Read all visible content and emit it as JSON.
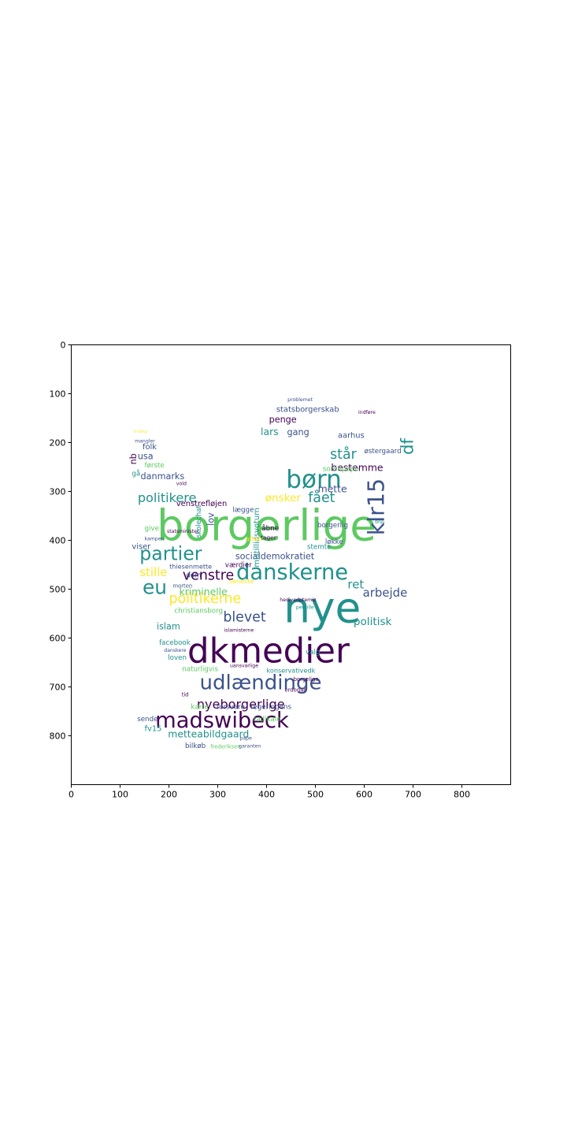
{
  "chart_data": {
    "type": "wordcloud",
    "xlim": [
      0,
      900
    ],
    "ylim": [
      900,
      0
    ],
    "x_ticks": [
      0,
      100,
      200,
      300,
      400,
      500,
      600,
      700,
      800
    ],
    "y_ticks": [
      0,
      100,
      200,
      300,
      400,
      500,
      600,
      700,
      800
    ],
    "grid": false,
    "palette": [
      "#440154",
      "#3b528b",
      "#21918c",
      "#5ec962",
      "#fde725"
    ],
    "words": [
      {
        "text": "borgerlige",
        "x": 175,
        "y": 400,
        "size": 88,
        "color": "#5ec962"
      },
      {
        "text": "dkmedier",
        "x": 238,
        "y": 650,
        "size": 70,
        "color": "#440154"
      },
      {
        "text": "nye",
        "x": 435,
        "y": 568,
        "size": 86,
        "color": "#21918c"
      },
      {
        "text": "danskerne",
        "x": 338,
        "y": 480,
        "size": 44,
        "color": "#21918c"
      },
      {
        "text": "udlændinge",
        "x": 263,
        "y": 705,
        "size": 42,
        "color": "#3b528b"
      },
      {
        "text": "madswibeck",
        "x": 172,
        "y": 783,
        "size": 44,
        "color": "#440154"
      },
      {
        "text": "partier",
        "x": 140,
        "y": 440,
        "size": 38,
        "color": "#21918c"
      },
      {
        "text": "børn",
        "x": 440,
        "y": 292,
        "size": 50,
        "color": "#21918c"
      },
      {
        "text": "klr15",
        "x": 640,
        "y": 390,
        "size": 46,
        "color": "#3b528b",
        "rotate": -90
      },
      {
        "text": "eu",
        "x": 146,
        "y": 510,
        "size": 40,
        "color": "#21918c"
      },
      {
        "text": "nyeborgerlige",
        "x": 257,
        "y": 744,
        "size": 26,
        "color": "#440154"
      },
      {
        "text": "blevet",
        "x": 311,
        "y": 566,
        "size": 28,
        "color": "#3b528b"
      },
      {
        "text": "politikerne",
        "x": 200,
        "y": 528,
        "size": 28,
        "color": "#fde725"
      },
      {
        "text": "venstre",
        "x": 228,
        "y": 481,
        "size": 28,
        "color": "#440154"
      },
      {
        "text": "politikere",
        "x": 136,
        "y": 322,
        "size": 26,
        "color": "#21918c"
      },
      {
        "text": "står",
        "x": 530,
        "y": 233,
        "size": 28,
        "color": "#21918c"
      },
      {
        "text": "fået",
        "x": 485,
        "y": 322,
        "size": 28,
        "color": "#21918c"
      },
      {
        "text": "df",
        "x": 700,
        "y": 225,
        "size": 34,
        "color": "#21918c",
        "rotate": -90
      },
      {
        "text": "arbejde",
        "x": 597,
        "y": 515,
        "size": 24,
        "color": "#3b528b"
      },
      {
        "text": "ret",
        "x": 566,
        "y": 498,
        "size": 24,
        "color": "#21918c"
      },
      {
        "text": "politisk",
        "x": 578,
        "y": 573,
        "size": 22,
        "color": "#21918c"
      },
      {
        "text": "stille",
        "x": 140,
        "y": 473,
        "size": 24,
        "color": "#fde725"
      },
      {
        "text": "metteabildgaard",
        "x": 198,
        "y": 803,
        "size": 20,
        "color": "#21918c"
      },
      {
        "text": "kriminelle",
        "x": 221,
        "y": 512,
        "size": 20,
        "color": "#5ec962"
      },
      {
        "text": "mette",
        "x": 505,
        "y": 302,
        "size": 20,
        "color": "#3b528b"
      },
      {
        "text": "bestemme",
        "x": 532,
        "y": 258,
        "size": 20,
        "color": "#440154"
      },
      {
        "text": "ønsker",
        "x": 397,
        "y": 320,
        "size": 22,
        "color": "#fde725"
      },
      {
        "text": "socialdemokratiet",
        "x": 336,
        "y": 439,
        "size": 18,
        "color": "#3b528b"
      },
      {
        "text": "mistillidsvotum",
        "x": 385,
        "y": 455,
        "size": 16,
        "color": "#21918c",
        "rotate": -90
      },
      {
        "text": "statsborgerskab",
        "x": 420,
        "y": 137,
        "size": 16,
        "color": "#3b528b"
      },
      {
        "text": "lars",
        "x": 388,
        "y": 185,
        "size": 20,
        "color": "#21918c"
      },
      {
        "text": "penge",
        "x": 405,
        "y": 159,
        "size": 18,
        "color": "#440154"
      },
      {
        "text": "gang",
        "x": 442,
        "y": 185,
        "size": 18,
        "color": "#3b528b"
      },
      {
        "text": "aarhus",
        "x": 546,
        "y": 190,
        "size": 16,
        "color": "#3b528b"
      },
      {
        "text": "danmarks",
        "x": 142,
        "y": 275,
        "size": 18,
        "color": "#3b528b"
      },
      {
        "text": "usa",
        "x": 136,
        "y": 234,
        "size": 18,
        "color": "#3b528b"
      },
      {
        "text": "folk",
        "x": 146,
        "y": 214,
        "size": 16,
        "color": "#3b528b"
      },
      {
        "text": "nb",
        "x": 133,
        "y": 245,
        "size": 18,
        "color": "#440154",
        "rotate": -90
      },
      {
        "text": "første",
        "x": 150,
        "y": 251,
        "size": 14,
        "color": "#5ec962"
      },
      {
        "text": "gå",
        "x": 124,
        "y": 268,
        "size": 14,
        "color": "#21918c"
      },
      {
        "text": "venstrefløjen",
        "x": 215,
        "y": 330,
        "size": 16,
        "color": "#440154"
      },
      {
        "text": "skolechat",
        "x": 265,
        "y": 395,
        "size": 14,
        "color": "#21918c",
        "rotate": -90
      },
      {
        "text": "lov",
        "x": 292,
        "y": 370,
        "size": 18,
        "color": "#3b528b",
        "rotate": -90
      },
      {
        "text": "lægge",
        "x": 330,
        "y": 342,
        "size": 14,
        "color": "#3b528b"
      },
      {
        "text": "viser",
        "x": 124,
        "y": 418,
        "size": 16,
        "color": "#3b528b"
      },
      {
        "text": "thiesenmette",
        "x": 201,
        "y": 458,
        "size": 13,
        "color": "#3b528b"
      },
      {
        "text": "værdier",
        "x": 315,
        "y": 455,
        "size": 14,
        "color": "#440154"
      },
      {
        "text": "dom",
        "x": 235,
        "y": 476,
        "size": 14,
        "color": "#3b528b"
      },
      {
        "text": "islam",
        "x": 175,
        "y": 582,
        "size": 18,
        "color": "#21918c"
      },
      {
        "text": "christiansborg",
        "x": 211,
        "y": 548,
        "size": 14,
        "color": "#5ec962"
      },
      {
        "text": "facebook",
        "x": 180,
        "y": 614,
        "size": 14,
        "color": "#21918c"
      },
      {
        "text": "loven",
        "x": 198,
        "y": 644,
        "size": 14,
        "color": "#21918c"
      },
      {
        "text": "naturligvis",
        "x": 227,
        "y": 668,
        "size": 14,
        "color": "#5ec962"
      },
      {
        "text": "konservativedk",
        "x": 400,
        "y": 671,
        "size": 13,
        "color": "#21918c"
      },
      {
        "text": "regeringens",
        "x": 367,
        "y": 745,
        "size": 14,
        "color": "#3b528b"
      },
      {
        "text": "forsvare",
        "x": 298,
        "y": 745,
        "size": 14,
        "color": "#3b528b"
      },
      {
        "text": "radikale",
        "x": 373,
        "y": 770,
        "size": 14,
        "color": "#5ec962"
      },
      {
        "text": "sende",
        "x": 135,
        "y": 770,
        "size": 14,
        "color": "#3b528b"
      },
      {
        "text": "fv15",
        "x": 150,
        "y": 790,
        "size": 16,
        "color": "#21918c"
      },
      {
        "text": "kære",
        "x": 245,
        "y": 745,
        "size": 14,
        "color": "#5ec962"
      },
      {
        "text": "bilkøb",
        "x": 233,
        "y": 825,
        "size": 14,
        "color": "#3b528b"
      },
      {
        "text": "frederiksen",
        "x": 285,
        "y": 826,
        "size": 11,
        "color": "#5ec962"
      },
      {
        "text": "give",
        "x": 150,
        "y": 380,
        "size": 14,
        "color": "#5ec962"
      },
      {
        "text": "løkke",
        "x": 520,
        "y": 407,
        "size": 14,
        "color": "#3b528b"
      },
      {
        "text": "stemte",
        "x": 483,
        "y": 418,
        "size": 14,
        "color": "#21918c"
      },
      {
        "text": "sorenpape",
        "x": 515,
        "y": 258,
        "size": 14,
        "color": "#5ec962"
      },
      {
        "text": "borgerlig",
        "x": 504,
        "y": 373,
        "size": 14,
        "color": "#3b528b"
      },
      {
        "text": "østergaard",
        "x": 600,
        "y": 222,
        "size": 14,
        "color": "#3b528b"
      },
      {
        "text": "åbne",
        "x": 390,
        "y": 380,
        "size": 14,
        "color": "#440154"
      },
      {
        "text": "tager",
        "x": 388,
        "y": 398,
        "size": 12,
        "color": "#440154"
      },
      {
        "text": "valg",
        "x": 480,
        "y": 633,
        "size": 14,
        "color": "#21918c"
      },
      {
        "text": "erdogan",
        "x": 437,
        "y": 710,
        "size": 11,
        "color": "#440154"
      },
      {
        "text": "seneste",
        "x": 323,
        "y": 488,
        "size": 13,
        "color": "#fde725"
      },
      {
        "text": "aften",
        "x": 357,
        "y": 402,
        "size": 13,
        "color": "#fde725"
      },
      {
        "text": "problemet",
        "x": 443,
        "y": 115,
        "size": 10,
        "color": "#3b528b"
      },
      {
        "text": "indføre",
        "x": 588,
        "y": 141,
        "size": 10,
        "color": "#440154"
      },
      {
        "text": "borgelige",
        "x": 455,
        "y": 688,
        "size": 11,
        "color": "#440154"
      },
      {
        "text": "pernille",
        "x": 460,
        "y": 540,
        "size": 10,
        "color": "#21918c"
      },
      {
        "text": "hediyedptemiz",
        "x": 427,
        "y": 525,
        "size": 10,
        "color": "#440154"
      },
      {
        "text": "danskere",
        "x": 190,
        "y": 628,
        "size": 10,
        "color": "#3b528b"
      },
      {
        "text": "tid",
        "x": 226,
        "y": 719,
        "size": 11,
        "color": "#440154"
      },
      {
        "text": "morten",
        "x": 208,
        "y": 497,
        "size": 11,
        "color": "#3b528b"
      },
      {
        "text": "statsminister",
        "x": 196,
        "y": 385,
        "size": 10,
        "color": "#440154"
      },
      {
        "text": "kampen",
        "x": 150,
        "y": 400,
        "size": 10,
        "color": "#3b528b"
      },
      {
        "text": "mangler",
        "x": 130,
        "y": 200,
        "size": 10,
        "color": "#3b528b"
      },
      {
        "text": "trump",
        "x": 128,
        "y": 180,
        "size": 9,
        "color": "#fde725"
      },
      {
        "text": "vold",
        "x": 215,
        "y": 287,
        "size": 10,
        "color": "#440154"
      },
      {
        "text": "garanten",
        "x": 343,
        "y": 824,
        "size": 10,
        "color": "#3b528b"
      },
      {
        "text": "pape",
        "x": 345,
        "y": 808,
        "size": 10,
        "color": "#3b528b"
      },
      {
        "text": "islamisterne",
        "x": 313,
        "y": 587,
        "size": 10,
        "color": "#440154"
      },
      {
        "text": "uansvarlige",
        "x": 325,
        "y": 660,
        "size": 10,
        "color": "#440154"
      },
      {
        "text": "bnp",
        "x": 622,
        "y": 365,
        "size": 10,
        "color": "#21918c"
      }
    ]
  }
}
